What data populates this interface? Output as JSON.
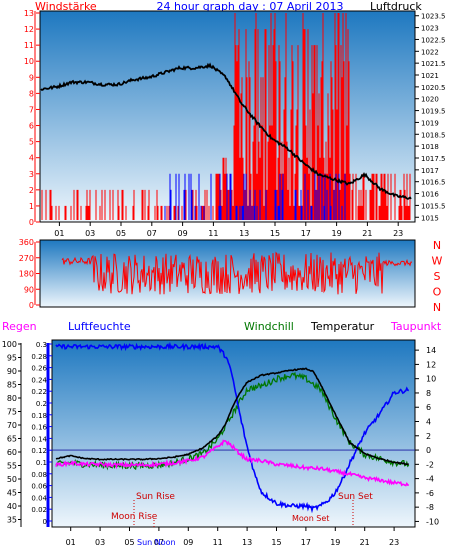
{
  "header": {
    "left_label": "Windstärke",
    "title": "24 hour graph day : 07 April 2013",
    "right_label": "Luftdruck"
  },
  "lower_header": {
    "regen": "Regen",
    "feuchte": "Luftfeuchte",
    "windchill": "Windchill",
    "temperatur": "Temperatur",
    "taupunkt": "Taupunkt"
  },
  "colors": {
    "gradient_top": "#1e78c0",
    "gradient_bottom": "#eef6fc",
    "wind": "#ff0000",
    "gust": "#0000ff",
    "pressure": "#000000",
    "humidity": "#0000ff",
    "windchill": "#007700",
    "temperature": "#000000",
    "dewpoint": "#ff00ff",
    "rain_axis": "#0000ff",
    "sun_text": "#cc0000",
    "moon_text": "#cc0000"
  },
  "chart_data": [
    {
      "type": "bar",
      "name": "wind",
      "x_ticks": [
        "01",
        "03",
        "05",
        "07",
        "09",
        "11",
        "13",
        "15",
        "17",
        "19",
        "21",
        "23"
      ],
      "left_axis": [
        "0",
        "1",
        "2",
        "3",
        "4",
        "5",
        "6",
        "7",
        "8",
        "9",
        "10",
        "11",
        "12",
        "13"
      ],
      "right_axis": [
        "1015",
        "1015.5",
        "1016",
        "1016.5",
        "1017",
        "1017.5",
        "1018",
        "1018.5",
        "1019",
        "1019.5",
        "1020",
        "1020.5",
        "1021",
        "1021.5",
        "1022",
        "1022.5",
        "1023",
        "1023.5"
      ],
      "ylim_left": [
        0,
        13
      ],
      "ylim_right": [
        1014.8,
        1023.7
      ],
      "pressure_x": [
        0,
        1,
        2,
        3,
        4,
        5,
        6,
        7,
        8,
        9,
        10,
        11,
        12,
        13,
        14,
        15,
        16,
        17,
        18,
        19,
        20,
        21,
        22,
        23,
        24
      ],
      "pressure_y": [
        1020.4,
        1020.5,
        1020.7,
        1020.7,
        1020.6,
        1020.6,
        1020.8,
        1020.9,
        1021.1,
        1021.3,
        1021.3,
        1021.4,
        1020.9,
        1019.8,
        1019.0,
        1018.3,
        1017.9,
        1017.3,
        1016.8,
        1016.6,
        1016.4,
        1016.8,
        1016.2,
        1015.9,
        1015.8
      ]
    },
    {
      "type": "line",
      "name": "wind_direction",
      "left_axis": [
        "360",
        "270",
        "180",
        "90",
        "0"
      ],
      "right_axis": [
        "N",
        "W",
        "S",
        "O",
        "N"
      ],
      "ylim": [
        0,
        360
      ]
    },
    {
      "type": "line",
      "name": "climate",
      "rain_axis": [
        "0.3",
        "0.28",
        "0.26",
        "0.24",
        "0.22",
        "0.2",
        "0.18",
        "0.16",
        "0.14",
        "0.12",
        "0.1",
        "0.08",
        "0.06",
        "0.04",
        "0.02",
        "0"
      ],
      "humidity_axis": [
        "100",
        "95",
        "90",
        "85",
        "80",
        "75",
        "70",
        "65",
        "60",
        "55",
        "50",
        "45",
        "40",
        "35"
      ],
      "temp_axis": [
        "14",
        "12",
        "10",
        "8",
        "6",
        "4",
        "2",
        "0",
        "-2",
        "-4",
        "-6",
        "-8",
        "-10"
      ],
      "ylim_temp": [
        -10.5,
        15
      ],
      "temperature_x": [
        0,
        0.5,
        1,
        2,
        3,
        4,
        5,
        6,
        7,
        8,
        9,
        10,
        11,
        11.5,
        12,
        12.5,
        13,
        14,
        15,
        16,
        17,
        17.5,
        18,
        19,
        19.5,
        20,
        21,
        22,
        23,
        24
      ],
      "temperature_y": [
        -1.2,
        -1.0,
        -0.8,
        -1.2,
        -1.3,
        -1.3,
        -1.3,
        -1.3,
        -1.2,
        -1.0,
        -0.6,
        0.3,
        2.0,
        3.5,
        6.0,
        8.0,
        9.5,
        10.5,
        10.8,
        11.2,
        11.4,
        11.0,
        9.2,
        5.0,
        3.0,
        1.0,
        -0.5,
        -1.2,
        -1.7,
        -2.0
      ],
      "dewpoint_x": [
        0,
        1,
        2,
        3,
        4,
        5,
        6,
        7,
        8,
        9,
        10,
        11,
        11.5,
        12,
        12.5,
        13,
        14,
        15,
        16,
        17,
        18,
        19,
        20,
        21,
        22,
        23,
        24
      ],
      "dewpoint_y": [
        -2.1,
        -1.8,
        -2.0,
        -2.0,
        -2.1,
        -2.1,
        -2.1,
        -2.0,
        -1.8,
        -1.5,
        -1.0,
        0.5,
        1.3,
        0.5,
        -0.5,
        -1.3,
        -1.5,
        -2.0,
        -2.2,
        -2.5,
        -2.6,
        -3.0,
        -3.4,
        -3.9,
        -4.2,
        -4.6,
        -4.8
      ],
      "humidity_x": [
        0,
        2,
        4,
        6,
        8,
        10,
        11,
        11.6,
        12,
        12.5,
        13,
        13.5,
        14,
        15,
        16,
        17,
        17.5,
        18,
        18.5,
        19,
        19.5,
        20,
        21,
        22,
        23,
        24
      ],
      "humidity_y": [
        99,
        99,
        99,
        99,
        99,
        99,
        99,
        95,
        88,
        74,
        62,
        52,
        45,
        41,
        40,
        40,
        39,
        40,
        42,
        45,
        50,
        56,
        67,
        74,
        82,
        83
      ],
      "windchill_x": [
        0,
        1,
        2,
        3,
        4,
        5,
        6,
        7,
        8,
        9,
        10,
        11,
        12,
        13,
        14,
        15,
        16,
        17,
        18,
        19,
        20,
        21,
        22,
        23,
        24
      ],
      "windchill_y": [
        -2.0,
        -1.8,
        -2.0,
        -2.1,
        -2.2,
        -2.2,
        -2.2,
        -2.1,
        -1.8,
        -1.2,
        -0.5,
        1.5,
        5.0,
        8.5,
        9.0,
        10.0,
        10.5,
        10.0,
        8.5,
        4.5,
        1.0,
        -0.6,
        -1.2,
        -1.7,
        -2.0
      ]
    }
  ],
  "annotations": {
    "sun_rise": "Sun Rise",
    "sun_set": "Sun Set",
    "moon_rise": "Moon Rise",
    "moon_set": "Moon Set",
    "sun_noon": "Sun Noon"
  }
}
